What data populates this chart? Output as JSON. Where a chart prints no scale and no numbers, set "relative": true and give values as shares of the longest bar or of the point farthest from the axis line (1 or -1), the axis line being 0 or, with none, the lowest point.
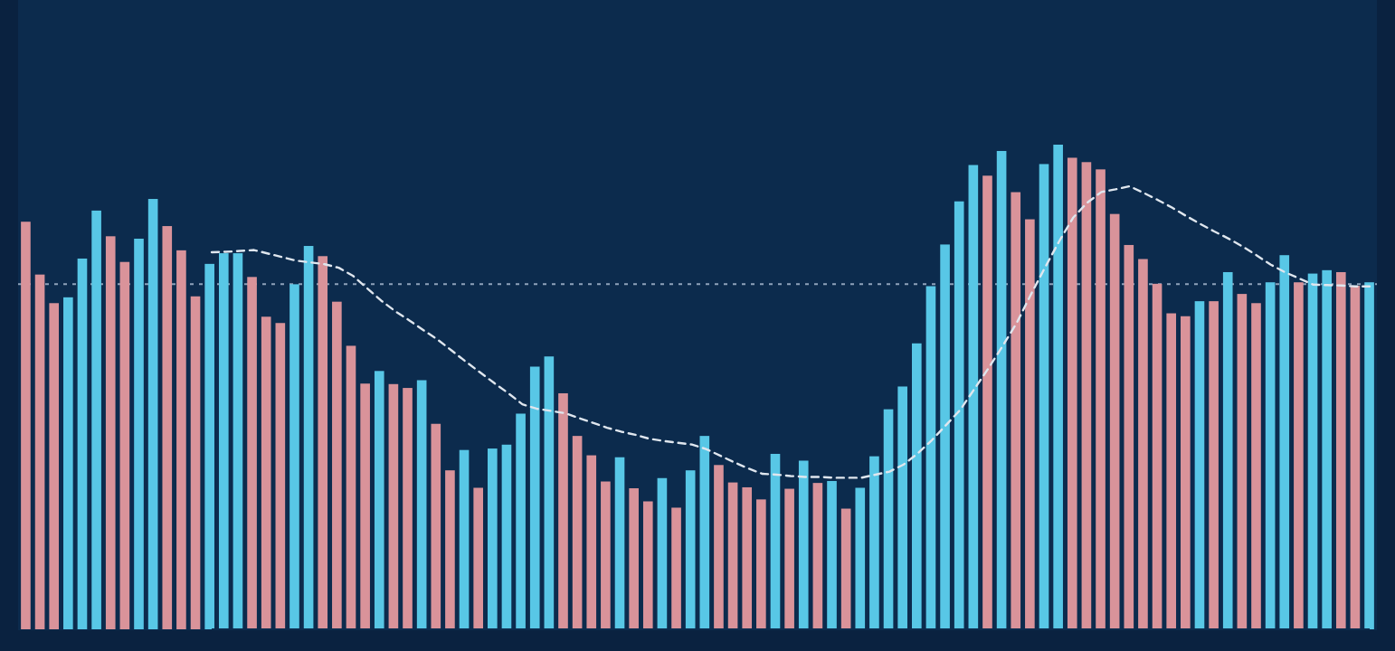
{
  "chart_data": [
    {
      "type": "bar",
      "relative": true,
      "categories": [
        null,
        null,
        null,
        null,
        null,
        null,
        null,
        null,
        null,
        null,
        null,
        null,
        null,
        null,
        null,
        null,
        null,
        null,
        null,
        null,
        null,
        null,
        null,
        null,
        null,
        null,
        null,
        null,
        null,
        null,
        null,
        null,
        null,
        null,
        null,
        null,
        null,
        null,
        null,
        null,
        null,
        null,
        null,
        null,
        null,
        null,
        null,
        null,
        null,
        null,
        null,
        null,
        null,
        null,
        null,
        null,
        null,
        null,
        null,
        null,
        null,
        null,
        null,
        null,
        null,
        null,
        null,
        null,
        null,
        null,
        null,
        null,
        null,
        null,
        null,
        null,
        null,
        null,
        null,
        null,
        null,
        null,
        null,
        null,
        null,
        null,
        null,
        null,
        null,
        null,
        null,
        null,
        null,
        null,
        null,
        null
      ],
      "ref_lines": [
        {
          "axis": "y",
          "value": 0.712,
          "color": "#8fa3bb",
          "line_style": "dotted"
        }
      ],
      "values": [
        0.841,
        0.732,
        0.673,
        0.685,
        0.765,
        0.864,
        0.811,
        0.758,
        0.806,
        0.888,
        0.832,
        0.782,
        0.687,
        0.754,
        0.776,
        0.776,
        0.727,
        0.645,
        0.632,
        0.712,
        0.791,
        0.77,
        0.676,
        0.585,
        0.507,
        0.533,
        0.506,
        0.498,
        0.514,
        0.424,
        0.328,
        0.37,
        0.292,
        0.373,
        0.381,
        0.445,
        0.542,
        0.563,
        0.487,
        0.399,
        0.359,
        0.305,
        0.355,
        0.291,
        0.264,
        0.312,
        0.251,
        0.328,
        0.399,
        0.339,
        0.303,
        0.293,
        0.268,
        0.362,
        0.29,
        0.348,
        0.302,
        0.306,
        0.249,
        0.292,
        0.357,
        0.454,
        0.501,
        0.59,
        0.708,
        0.794,
        0.883,
        0.958,
        0.936,
        0.987,
        0.902,
        0.846,
        0.96,
        1,
        0.973,
        0.964,
        0.949,
        0.857,
        0.793,
        0.764,
        0.713,
        0.652,
        0.646,
        0.677,
        0.677,
        0.737,
        0.692,
        0.673,
        0.716,
        0.772,
        0.716,
        0.734,
        0.741,
        0.737,
        0.709,
        0.716
      ],
      "colors": [
        "#d9939a",
        "#d9939a",
        "#d9939a",
        "#58c7e6",
        "#58c7e6",
        "#58c7e6",
        "#d9939a",
        "#d9939a",
        "#58c7e6",
        "#58c7e6",
        "#d9939a",
        "#d9939a",
        "#d9939a",
        "#58c7e6",
        "#58c7e6",
        "#58c7e6",
        "#d9939a",
        "#d9939a",
        "#d9939a",
        "#58c7e6",
        "#58c7e6",
        "#d9939a",
        "#d9939a",
        "#d9939a",
        "#d9939a",
        "#58c7e6",
        "#d9939a",
        "#d9939a",
        "#58c7e6",
        "#d9939a",
        "#d9939a",
        "#58c7e6",
        "#d9939a",
        "#58c7e6",
        "#58c7e6",
        "#58c7e6",
        "#58c7e6",
        "#58c7e6",
        "#d9939a",
        "#d9939a",
        "#d9939a",
        "#d9939a",
        "#58c7e6",
        "#d9939a",
        "#d9939a",
        "#58c7e6",
        "#d9939a",
        "#58c7e6",
        "#58c7e6",
        "#d9939a",
        "#d9939a",
        "#d9939a",
        "#d9939a",
        "#58c7e6",
        "#d9939a",
        "#58c7e6",
        "#d9939a",
        "#58c7e6",
        "#d9939a",
        "#58c7e6",
        "#58c7e6",
        "#58c7e6",
        "#58c7e6",
        "#58c7e6",
        "#58c7e6",
        "#58c7e6",
        "#58c7e6",
        "#58c7e6",
        "#d9939a",
        "#58c7e6",
        "#d9939a",
        "#d9939a",
        "#58c7e6",
        "#58c7e6",
        "#d9939a",
        "#d9939a",
        "#d9939a",
        "#d9939a",
        "#d9939a",
        "#d9939a",
        "#d9939a",
        "#d9939a",
        "#d9939a",
        "#58c7e6",
        "#d9939a",
        "#58c7e6",
        "#d9939a",
        "#d9939a",
        "#58c7e6",
        "#58c7e6",
        "#d9939a",
        "#58c7e6",
        "#58c7e6",
        "#d9939a",
        "#d9939a",
        "#58c7e6"
      ]
    },
    {
      "type": "line",
      "relative": true,
      "color": "#dfe6ee",
      "line_style": "dashed",
      "categories": [
        null,
        null,
        null,
        null,
        null,
        null,
        null,
        null,
        null,
        null,
        null,
        null,
        null,
        null,
        null,
        null,
        null,
        null,
        null,
        null,
        null,
        null,
        null,
        null,
        null,
        null,
        null,
        null,
        null,
        null,
        null,
        null,
        null,
        null,
        null,
        null,
        null,
        null,
        null,
        null,
        null,
        null,
        null,
        null,
        null,
        null,
        null,
        null,
        null,
        null,
        null,
        null,
        null,
        null,
        null,
        null,
        null,
        null,
        null,
        null,
        null,
        null,
        null,
        null,
        null,
        null,
        null,
        null,
        null,
        null,
        null,
        null,
        null,
        null,
        null,
        null,
        null,
        null,
        null,
        null,
        null,
        null,
        null
      ],
      "values": [
        0.851,
        0.852,
        0.854,
        0.856,
        0.848,
        0.84,
        0.832,
        0.828,
        0.824,
        0.816,
        0.798,
        0.77,
        0.742,
        0.718,
        0.697,
        0.675,
        0.654,
        0.629,
        0.604,
        0.58,
        0.556,
        0.533,
        0.508,
        0.498,
        0.493,
        0.488,
        0.477,
        0.466,
        0.455,
        0.446,
        0.439,
        0.43,
        0.425,
        0.421,
        0.417,
        0.407,
        0.392,
        0.377,
        0.363,
        0.351,
        0.349,
        0.346,
        0.344,
        0.344,
        0.342,
        0.342,
        0.342,
        0.349,
        0.356,
        0.372,
        0.397,
        0.427,
        0.461,
        0.495,
        0.542,
        0.589,
        0.639,
        0.691,
        0.755,
        0.816,
        0.875,
        0.929,
        0.963,
        0.987,
        0.993,
        1,
        0.985,
        0.969,
        0.952,
        0.933,
        0.915,
        0.898,
        0.882,
        0.864,
        0.844,
        0.823,
        0.806,
        0.792,
        0.778,
        0.777,
        0.776,
        0.774,
        0.774
      ]
    }
  ]
}
